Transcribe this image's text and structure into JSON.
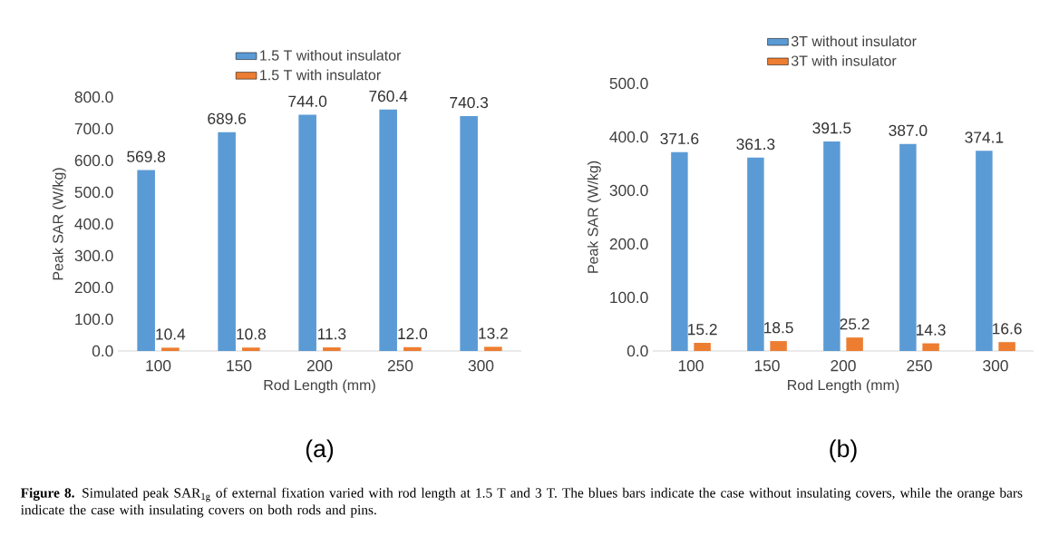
{
  "chart_data": [
    {
      "type": "bar",
      "categories": [
        "100",
        "150",
        "200",
        "250",
        "300"
      ],
      "xlabel": "Rod Length (mm)",
      "ylabel": "Peak SAR (W/kg)",
      "ylim": [
        0,
        800
      ],
      "yticks": [
        {
          "value": 0,
          "label": "0.0"
        },
        {
          "value": 100,
          "label": "100.0"
        },
        {
          "value": 200,
          "label": "200.0"
        },
        {
          "value": 300,
          "label": "300.0"
        },
        {
          "value": 400,
          "label": "400.0"
        },
        {
          "value": 500,
          "label": "500.0"
        },
        {
          "value": 600,
          "label": "600.0"
        },
        {
          "value": 700,
          "label": "700.0"
        },
        {
          "value": 800,
          "label": "800.0"
        }
      ],
      "legend": "top",
      "series": [
        {
          "name": "1.5 T without insulator",
          "color": "#5b9bd5",
          "values": [
            569.8,
            689.6,
            744.0,
            760.4,
            740.3
          ],
          "value_labels": [
            "569.8",
            "689.6",
            "744.0",
            "760.4",
            "740.3"
          ]
        },
        {
          "name": "1.5 T with insulator",
          "color": "#ed7d31",
          "values": [
            10.4,
            10.8,
            11.3,
            12.0,
            13.2
          ],
          "value_labels": [
            "10.4",
            "10.8",
            "11.3",
            "12.0",
            "13.2"
          ]
        }
      ],
      "annotations": [
        "(a)",
        "**Figure 8.** Simulated peak SAR$_{1g}$ of external fixation varied with rod length at 1.5 T and 3 T. The blues bars indicate the case without insulating covers, while the orange bars indicate the case with insulating covers on both rods and pins."
      ]
    },
    {
      "type": "bar",
      "categories": [
        "100",
        "150",
        "200",
        "250",
        "300"
      ],
      "xlabel": "Rod Length (mm)",
      "ylabel": "Peak SAR (W/kg)",
      "ylim": [
        0,
        500
      ],
      "yticks": [
        {
          "value": 0,
          "label": "0.0"
        },
        {
          "value": 100,
          "label": "100.0"
        },
        {
          "value": 200,
          "label": "200.0"
        },
        {
          "value": 300,
          "label": "300.0"
        },
        {
          "value": 400,
          "label": "400.0"
        },
        {
          "value": 500,
          "label": "500.0"
        }
      ],
      "legend": "top",
      "series": [
        {
          "name": "3T without insulator",
          "color": "#5b9bd5",
          "values": [
            371.6,
            361.3,
            391.5,
            387.0,
            374.1
          ],
          "value_labels": [
            "371.6",
            "361.3",
            "391.5",
            "387.0",
            "374.1"
          ]
        },
        {
          "name": "3T with insulator",
          "color": "#ed7d31",
          "values": [
            15.2,
            18.5,
            25.2,
            14.3,
            16.6
          ],
          "value_labels": [
            "15.2",
            "18.5",
            "25.2",
            "14.3",
            "16.6"
          ]
        }
      ],
      "annotations": [
        "(b)"
      ]
    }
  ]
}
